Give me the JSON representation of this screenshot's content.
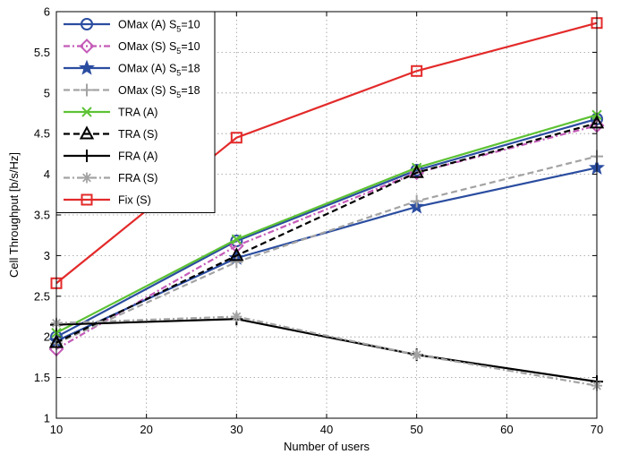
{
  "chart_data": {
    "type": "line",
    "xlabel": "Number of users",
    "ylabel": "Cell Throughput [b/s/Hz]",
    "xlim": [
      10,
      70
    ],
    "ylim": [
      1,
      6
    ],
    "xticks": [
      10,
      20,
      30,
      40,
      50,
      60,
      70
    ],
    "yticks": [
      1,
      1.5,
      2,
      2.5,
      3,
      3.5,
      4,
      4.5,
      5,
      5.5,
      6
    ],
    "grid": "dotted",
    "legend_position": "top-left",
    "x": [
      10,
      30,
      50,
      70
    ],
    "series": [
      {
        "name": "OMax (A) S",
        "sub": "5",
        "suffix": "=10",
        "color": "#2b4da0",
        "dash": "solid",
        "marker": "circle",
        "values": [
          2.0,
          3.18,
          4.05,
          4.68
        ]
      },
      {
        "name": "OMax (S) S",
        "sub": "5",
        "suffix": "=10",
        "color": "#c45bb8",
        "dash": "dashdot",
        "marker": "diamond",
        "values": [
          1.85,
          3.12,
          4.02,
          4.6
        ]
      },
      {
        "name": "OMax (A) S",
        "sub": "5",
        "suffix": "=18",
        "color": "#2b4da0",
        "dash": "solid",
        "marker": "star",
        "values": [
          1.95,
          2.97,
          3.6,
          4.08
        ]
      },
      {
        "name": "OMax (S) S",
        "sub": "5",
        "suffix": "=18",
        "color": "#a3a3a3",
        "dash": "dashed",
        "marker": "plus",
        "values": [
          1.92,
          2.92,
          3.67,
          4.22
        ]
      },
      {
        "name": "TRA (A)",
        "sub": "",
        "suffix": "",
        "color": "#5dc234",
        "dash": "solid",
        "marker": "x",
        "values": [
          2.05,
          3.2,
          4.08,
          4.73
        ]
      },
      {
        "name": "TRA (S)",
        "sub": "",
        "suffix": "",
        "color": "#000000",
        "dash": "dashed",
        "marker": "triangle",
        "values": [
          1.93,
          3.0,
          4.02,
          4.63
        ]
      },
      {
        "name": "FRA (A)",
        "sub": "",
        "suffix": "",
        "color": "#000000",
        "dash": "solid",
        "marker": "plus",
        "values": [
          2.15,
          2.22,
          1.78,
          1.45
        ]
      },
      {
        "name": "FRA (S)",
        "sub": "",
        "suffix": "",
        "color": "#a3a3a3",
        "dash": "dashdot",
        "marker": "asterisk",
        "values": [
          2.17,
          2.25,
          1.78,
          1.4
        ]
      },
      {
        "name": "Fix (S)",
        "sub": "",
        "suffix": "",
        "color": "#e32a2a",
        "dash": "solid",
        "marker": "square",
        "values": [
          2.66,
          4.45,
          5.27,
          5.86
        ]
      }
    ]
  }
}
